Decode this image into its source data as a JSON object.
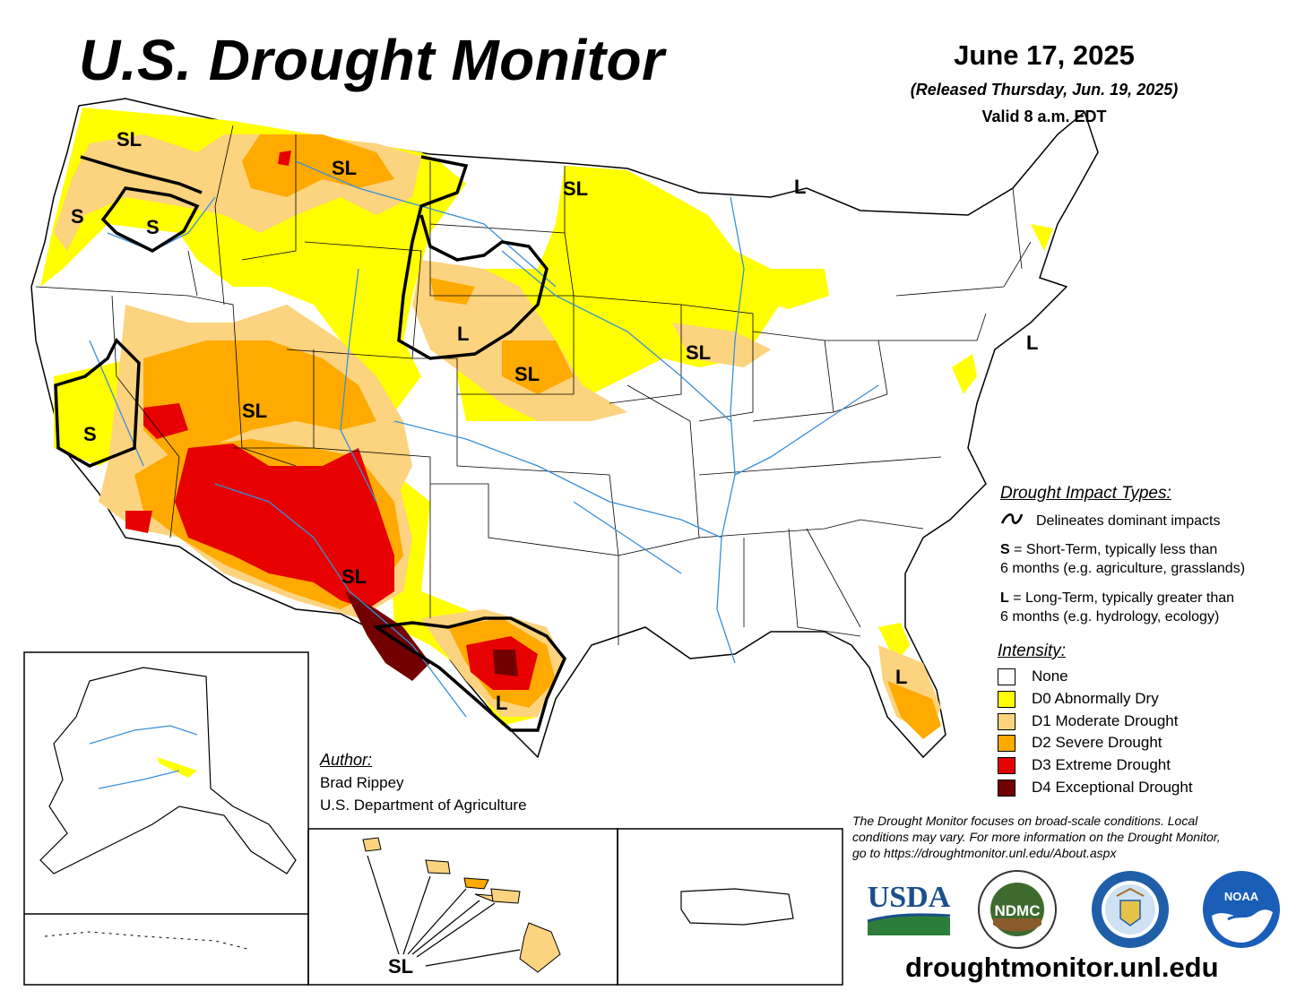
{
  "header": {
    "title": "U.S. Drought Monitor",
    "date": "June 17, 2025",
    "released": "(Released Thursday, Jun. 19, 2025)",
    "valid": "Valid 8 a.m. EDT"
  },
  "map_labels": {
    "sl_northwest": "SL",
    "sl_montana": "SL",
    "sl_minnesota": "SL",
    "l_michigan": "L",
    "s_oregon": "S",
    "s_oregon_east": "S",
    "l_wyoming": "L",
    "sl_iowa": "SL",
    "l_newjersey": "L",
    "sl_kansas": "SL",
    "sl_utah": "SL",
    "s_california": "S",
    "sl_newmexico": "SL",
    "l_texas": "L",
    "l_florida": "L",
    "sl_hawaii": "SL"
  },
  "legend": {
    "impact_heading": "Drought Impact Types:",
    "delineates": "Delineates dominant impacts",
    "short_bold": "S",
    "short_text": " = Short-Term, typically less than",
    "short_text2": "6 months (e.g. agriculture, grasslands)",
    "long_bold": "L",
    "long_text": " = Long-Term, typically greater than",
    "long_text2": "6 months (e.g. hydrology, ecology)",
    "intensity_heading": "Intensity:",
    "levels": [
      {
        "label": "None",
        "color": "#ffffff"
      },
      {
        "label": "D0 Abnormally Dry",
        "color": "#ffff00"
      },
      {
        "label": "D1 Moderate Drought",
        "color": "#fcd37f"
      },
      {
        "label": "D2 Severe Drought",
        "color": "#ffaa00"
      },
      {
        "label": "D3 Extreme Drought",
        "color": "#e60000"
      },
      {
        "label": "D4 Exceptional Drought",
        "color": "#730000"
      }
    ]
  },
  "author": {
    "heading": "Author:",
    "name": "Brad Rippey",
    "org": "U.S. Department of Agriculture"
  },
  "footer": {
    "note": "The Drought Monitor focuses on broad-scale conditions. Local conditions may vary. For more information on the Drought Monitor, go to https://droughtmonitor.unl.edu/About.aspx",
    "site": "droughtmonitor.unl.edu"
  },
  "logos": {
    "usda": "USDA",
    "ndmc": "NDMC",
    "ndmc_ring_top": "NATIONAL DROUGHT MITIGATION CENTER",
    "ndmc_ring_bottom": "UNIVERSITY OF NEBRASKA",
    "commerce_ring": "DEPARTMENT OF COMMERCE",
    "commerce_ring_bottom": "UNITED STATES OF AMERICA",
    "noaa": "NOAA"
  },
  "colors": {
    "water": "#3a8fd8",
    "d0": "#ffff00",
    "d1": "#fcd37f",
    "d2": "#ffaa00",
    "d3": "#e60000",
    "d4": "#730000"
  }
}
